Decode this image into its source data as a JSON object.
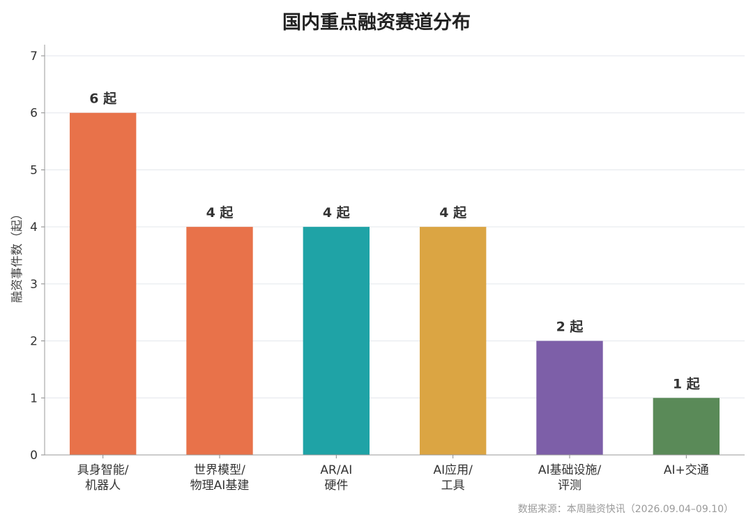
{
  "chart_data": {
    "type": "bar",
    "title": "国内重点融资赛道分布",
    "ylabel": "融资事件数（起）",
    "xlabel": "",
    "ylim": [
      0,
      7
    ],
    "yticks": [
      0,
      1,
      2,
      3,
      4,
      5,
      6,
      7
    ],
    "grid": true,
    "categories": [
      [
        "具身智能/",
        "机器人"
      ],
      [
        "世界模型/",
        "物理AI基建"
      ],
      [
        "AR/AI",
        "硬件"
      ],
      [
        "AI应用/",
        "工具"
      ],
      [
        "AI基础设施/",
        "评测"
      ],
      [
        "AI+交通"
      ]
    ],
    "values": [
      6,
      4,
      4,
      4,
      2,
      1
    ],
    "data_labels": [
      "6 起",
      "4 起",
      "4 起",
      "4 起",
      "2 起",
      "1 起"
    ],
    "colors": [
      "#E8724A",
      "#E8724A",
      "#1FA3A6",
      "#DBA543",
      "#7D5FA8",
      "#5A8A58"
    ]
  },
  "source_note": "数据来源：本周融资快讯（2026.09.04–09.10）"
}
